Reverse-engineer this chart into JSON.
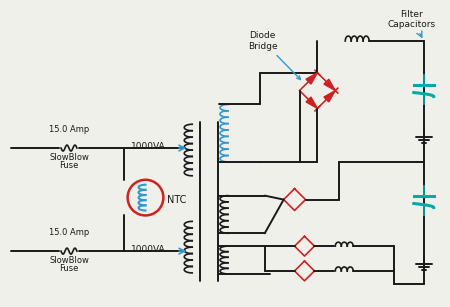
{
  "bg_color": "#f0f0eb",
  "line_color": "#1a1a1a",
  "blue_color": "#3399cc",
  "red_color": "#cc2222",
  "cyan_color": "#00aaaa",
  "labels": {
    "fuse1_amp": "15.0 Amp",
    "fuse1_name": "SlowBlow",
    "fuse1_fuse": "Fuse",
    "fuse2_amp": "15.0 Amp",
    "fuse2_name": "SlowBlow",
    "fuse2_fuse": "Fuse",
    "ntc": "NTC",
    "va1": "1000VA",
    "va2": "1000VA",
    "diode_bridge": "Diode\nBridge",
    "filter_cap": "Filter\nCapacitors"
  }
}
